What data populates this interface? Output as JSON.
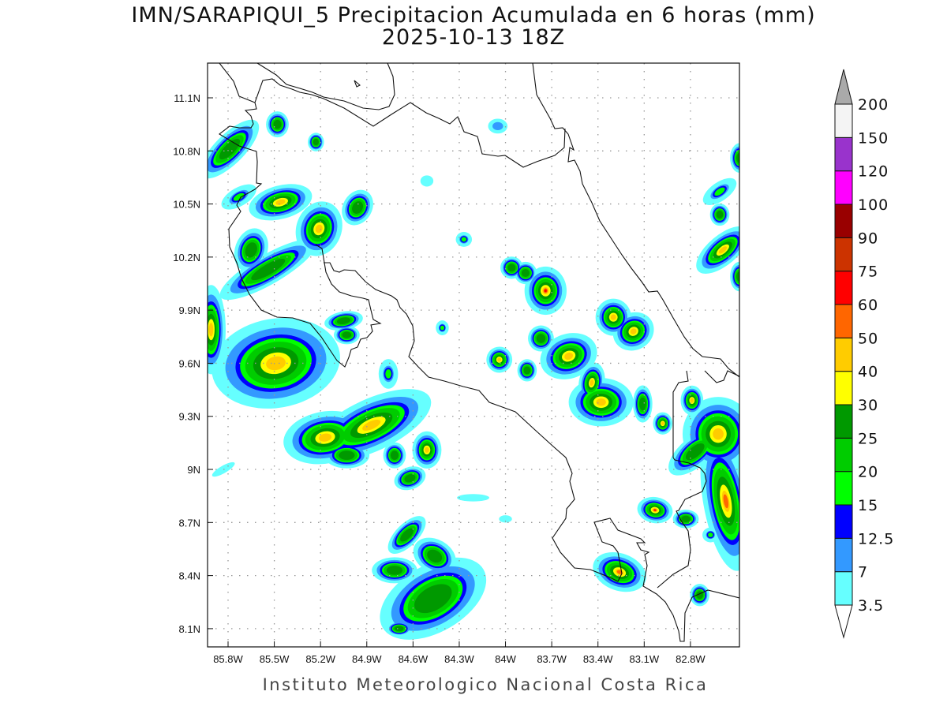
{
  "title": {
    "line1": "IMN/SARAPIQUI_5 Precipitacion Acumulada en 6 horas (mm)",
    "line2": "2025-10-13 18Z"
  },
  "footer": "Instituto Meteorologico Nacional Costa Rica",
  "chart_data": {
    "type": "heatmap",
    "variable": "Precipitacion Acumulada en 6 horas (mm)",
    "lon_range": [
      -85.93,
      -82.48
    ],
    "lat_range": [
      8.0,
      11.3
    ],
    "grid": true,
    "lon_ticks": [
      {
        "value": -85.8,
        "label": "85.8W"
      },
      {
        "value": -85.5,
        "label": "85.5W"
      },
      {
        "value": -85.2,
        "label": "85.2W"
      },
      {
        "value": -84.9,
        "label": "84.9W"
      },
      {
        "value": -84.6,
        "label": "84.6W"
      },
      {
        "value": -84.3,
        "label": "84.3W"
      },
      {
        "value": -84.0,
        "label": "84W"
      },
      {
        "value": -83.7,
        "label": "83.7W"
      },
      {
        "value": -83.4,
        "label": "83.4W"
      },
      {
        "value": -83.1,
        "label": "83.1W"
      },
      {
        "value": -82.8,
        "label": "82.8W"
      }
    ],
    "lat_ticks": [
      {
        "value": 11.1,
        "label": "11.1N"
      },
      {
        "value": 10.8,
        "label": "10.8N"
      },
      {
        "value": 10.5,
        "label": "10.5N"
      },
      {
        "value": 10.2,
        "label": "10.2N"
      },
      {
        "value": 9.9,
        "label": "9.9N"
      },
      {
        "value": 9.6,
        "label": "9.6N"
      },
      {
        "value": 9.3,
        "label": "9.3N"
      },
      {
        "value": 9.0,
        "label": "9N"
      },
      {
        "value": 8.7,
        "label": "8.7N"
      },
      {
        "value": 8.4,
        "label": "8.4N"
      },
      {
        "value": 8.1,
        "label": "8.1N"
      }
    ],
    "colorbar": {
      "levels": [
        "3.5",
        "7",
        "12.5",
        "15",
        "20",
        "25",
        "30",
        "40",
        "50",
        "60",
        "75",
        "90",
        "100",
        "120",
        "150",
        "200"
      ],
      "thresholds": [
        3.5,
        7,
        12.5,
        15,
        20,
        25,
        30,
        40,
        50,
        60,
        75,
        90,
        100,
        120,
        150,
        200
      ],
      "colors": [
        "#66ffff",
        "#3399ff",
        "#0000ff",
        "#00ff00",
        "#00cc00",
        "#009900",
        "#ffff00",
        "#ffcc00",
        "#ff6600",
        "#ff0000",
        "#cc3300",
        "#990000",
        "#ff00ff",
        "#9933cc",
        "#f4f4f4"
      ],
      "over_color": "#aaaaaa",
      "under_color": "#ffffff"
    },
    "cells": [
      {
        "lon": -85.49,
        "lat": 9.6,
        "rlon": 0.2,
        "rlat": 0.12,
        "rot": -10,
        "peak": 40
      },
      {
        "lon": -84.87,
        "lat": 9.25,
        "rlon": 0.2,
        "rlat": 0.07,
        "rot": -25,
        "peak": 40
      },
      {
        "lon": -85.17,
        "lat": 9.18,
        "rlon": 0.13,
        "rlat": 0.07,
        "rot": -10,
        "peak": 40
      },
      {
        "lon": -85.54,
        "lat": 10.13,
        "rlon": 0.17,
        "rlat": 0.04,
        "rot": -30,
        "peak": 25
      },
      {
        "lon": -85.65,
        "lat": 10.24,
        "rlon": 0.05,
        "rlat": 0.06,
        "rot": 20,
        "peak": 25
      },
      {
        "lon": -85.79,
        "lat": 10.81,
        "rlon": 0.12,
        "rlat": 0.04,
        "rot": -45,
        "peak": 25
      },
      {
        "lon": -85.46,
        "lat": 10.51,
        "rlon": 0.1,
        "rlat": 0.045,
        "rot": -15,
        "peak": 40
      },
      {
        "lon": -85.21,
        "lat": 10.36,
        "rlon": 0.07,
        "rlat": 0.075,
        "rot": 20,
        "peak": 40
      },
      {
        "lon": -84.96,
        "lat": 10.48,
        "rlon": 0.045,
        "rlat": 0.05,
        "rot": 30,
        "peak": 25
      },
      {
        "lon": -85.91,
        "lat": 9.79,
        "rlon": 0.045,
        "rlat": 0.12,
        "rot": 0,
        "peak": 40
      },
      {
        "lon": -83.74,
        "lat": 10.01,
        "rlon": 0.065,
        "rlat": 0.065,
        "rot": 0,
        "peak": 60
      },
      {
        "lon": -83.59,
        "lat": 9.64,
        "rlon": 0.09,
        "rlat": 0.06,
        "rot": -20,
        "peak": 40
      },
      {
        "lon": -83.3,
        "lat": 9.86,
        "rlon": 0.055,
        "rlat": 0.05,
        "rot": 0,
        "peak": 40
      },
      {
        "lon": -83.17,
        "lat": 9.78,
        "rlon": 0.065,
        "rlat": 0.05,
        "rot": -30,
        "peak": 40
      },
      {
        "lon": -83.38,
        "lat": 9.38,
        "rlon": 0.1,
        "rlat": 0.065,
        "rot": 0,
        "peak": 40
      },
      {
        "lon": -83.26,
        "lat": 8.42,
        "rlon": 0.085,
        "rlat": 0.05,
        "rot": 20,
        "peak": 50
      },
      {
        "lon": -83.03,
        "lat": 8.77,
        "rlon": 0.055,
        "rlat": 0.035,
        "rot": 10,
        "peak": 60
      },
      {
        "lon": -84.47,
        "lat": 8.27,
        "rlon": 0.18,
        "rlat": 0.09,
        "rot": -30,
        "peak": 25
      },
      {
        "lon": -84.72,
        "lat": 8.43,
        "rlon": 0.07,
        "rlat": 0.035,
        "rot": 0,
        "peak": 25
      },
      {
        "lon": -84.46,
        "lat": 8.51,
        "rlon": 0.07,
        "rlat": 0.045,
        "rot": 30,
        "peak": 25
      },
      {
        "lon": -84.64,
        "lat": 8.63,
        "rlon": 0.075,
        "rlat": 0.03,
        "rot": -45,
        "peak": 25
      },
      {
        "lon": -82.57,
        "lat": 8.82,
        "rlon": 0.07,
        "rlat": 0.19,
        "rot": -10,
        "peak": 50
      },
      {
        "lon": -82.62,
        "lat": 9.2,
        "rlon": 0.11,
        "rlat": 0.1,
        "rot": 0,
        "peak": 40
      },
      {
        "lon": -82.77,
        "lat": 9.1,
        "rlon": 0.1,
        "rlat": 0.04,
        "rot": -40,
        "peak": 25
      },
      {
        "lon": -82.59,
        "lat": 10.24,
        "rlon": 0.1,
        "rlat": 0.04,
        "rot": -40,
        "peak": 40
      },
      {
        "lon": -82.48,
        "lat": 10.76,
        "rlon": 0.03,
        "rlat": 0.04,
        "rot": 0,
        "peak": 25
      },
      {
        "lon": -85.03,
        "lat": 9.08,
        "rlon": 0.07,
        "rlat": 0.035,
        "rot": 0,
        "peak": 25
      },
      {
        "lon": -84.62,
        "lat": 8.95,
        "rlon": 0.05,
        "rlat": 0.03,
        "rot": -20,
        "peak": 25
      },
      {
        "lon": -84.51,
        "lat": 9.11,
        "rlon": 0.045,
        "rlat": 0.05,
        "rot": 0,
        "peak": 40
      },
      {
        "lon": -84.72,
        "lat": 9.08,
        "rlon": 0.035,
        "rlat": 0.035,
        "rot": 0,
        "peak": 25
      },
      {
        "lon": -84.04,
        "lat": 9.62,
        "rlon": 0.04,
        "rlat": 0.035,
        "rot": 0,
        "peak": 40
      },
      {
        "lon": -83.86,
        "lat": 9.56,
        "rlon": 0.03,
        "rlat": 0.03,
        "rot": 0,
        "peak": 25
      },
      {
        "lon": -83.77,
        "lat": 9.74,
        "rlon": 0.04,
        "rlat": 0.035,
        "rot": 0,
        "peak": 25
      },
      {
        "lon": -83.44,
        "lat": 9.49,
        "rlon": 0.04,
        "rlat": 0.055,
        "rot": 10,
        "peak": 40
      },
      {
        "lon": -83.11,
        "lat": 9.37,
        "rlon": 0.03,
        "rlat": 0.05,
        "rot": 0,
        "peak": 25
      },
      {
        "lon": -82.98,
        "lat": 9.26,
        "rlon": 0.03,
        "rlat": 0.03,
        "rot": 0,
        "peak": 40
      },
      {
        "lon": -82.79,
        "lat": 9.39,
        "rlon": 0.035,
        "rlat": 0.04,
        "rot": 0,
        "peak": 40
      },
      {
        "lon": -83.96,
        "lat": 10.14,
        "rlon": 0.035,
        "rlat": 0.03,
        "rot": 0,
        "peak": 25
      },
      {
        "lon": -83.87,
        "lat": 10.11,
        "rlon": 0.035,
        "rlat": 0.03,
        "rot": 0,
        "peak": 25
      },
      {
        "lon": -85.48,
        "lat": 10.95,
        "rlon": 0.035,
        "rlat": 0.035,
        "rot": 0,
        "peak": 25
      },
      {
        "lon": -85.23,
        "lat": 10.85,
        "rlon": 0.025,
        "rlat": 0.025,
        "rot": 0,
        "peak": 25
      },
      {
        "lon": -82.61,
        "lat": 10.57,
        "rlon": 0.06,
        "rlat": 0.025,
        "rot": -35,
        "peak": 15
      },
      {
        "lon": -82.61,
        "lat": 10.44,
        "rlon": 0.03,
        "rlat": 0.03,
        "rot": 0,
        "peak": 25
      },
      {
        "lon": -82.74,
        "lat": 8.29,
        "rlon": 0.03,
        "rlat": 0.03,
        "rot": 0,
        "peak": 25
      },
      {
        "lon": -82.83,
        "lat": 8.72,
        "rlon": 0.04,
        "rlat": 0.025,
        "rot": 0,
        "peak": 25
      },
      {
        "lon": -82.67,
        "lat": 8.63,
        "rlon": 0.025,
        "rlat": 0.02,
        "rot": 0,
        "peak": 15
      },
      {
        "lon": -84.76,
        "lat": 9.54,
        "rlon": 0.03,
        "rlat": 0.04,
        "rot": 0,
        "peak": 15
      },
      {
        "lon": -84.41,
        "lat": 9.8,
        "rlon": 0.02,
        "rlat": 0.02,
        "rot": 0,
        "peak": 15
      },
      {
        "lon": -85.73,
        "lat": 10.54,
        "rlon": 0.06,
        "rlat": 0.025,
        "rot": -30,
        "peak": 15
      },
      {
        "lon": -85.05,
        "lat": 9.84,
        "rlon": 0.06,
        "rlat": 0.025,
        "rot": -10,
        "peak": 25
      },
      {
        "lon": -85.03,
        "lat": 9.76,
        "rlon": 0.04,
        "rlat": 0.025,
        "rot": 0,
        "peak": 25
      },
      {
        "lon": -84.69,
        "lat": 8.1,
        "rlon": 0.04,
        "rlat": 0.02,
        "rot": 0,
        "peak": 25
      },
      {
        "lon": -84.27,
        "lat": 10.3,
        "rlon": 0.025,
        "rlat": 0.02,
        "rot": 0,
        "peak": 15
      },
      {
        "lon": -82.48,
        "lat": 10.09,
        "rlon": 0.03,
        "rlat": 0.04,
        "rot": 0,
        "peak": 25
      },
      {
        "lon": -84.05,
        "lat": 10.94,
        "rlon": 0.03,
        "rlat": 0.02,
        "rot": 0,
        "peak": 7
      },
      {
        "lon": -84.51,
        "lat": 10.63,
        "rlon": 0.02,
        "rlat": 0.015,
        "rot": 0,
        "peak": 3.5
      },
      {
        "lon": -84.21,
        "lat": 8.84,
        "rlon": 0.05,
        "rlat": 0.01,
        "rot": 0,
        "peak": 3.5
      },
      {
        "lon": -85.83,
        "lat": 9.0,
        "rlon": 0.04,
        "rlat": 0.01,
        "rot": -30,
        "peak": 3.5
      },
      {
        "lon": -84.0,
        "lat": 8.72,
        "rlon": 0.02,
        "rlat": 0.01,
        "rot": 0,
        "peak": 3.5
      }
    ]
  }
}
